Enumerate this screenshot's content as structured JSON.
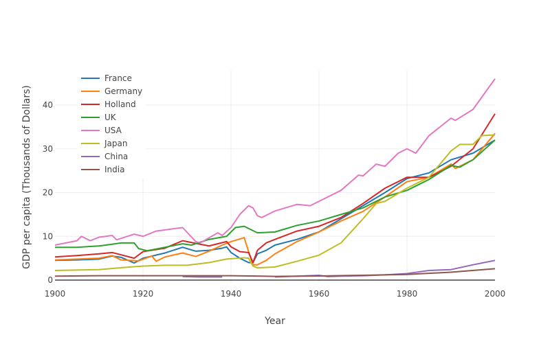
{
  "chart_data": {
    "type": "line",
    "title": "",
    "xlabel": "Year",
    "ylabel": "GDP per capita (Thousands of Dollars)",
    "xlim": [
      1900,
      2000
    ],
    "ylim": [
      -0.6,
      48
    ],
    "xticks": [
      "1900",
      "1920",
      "1940",
      "1960",
      "1980",
      "2000"
    ],
    "yticks": [
      "0",
      "10",
      "20",
      "30",
      "40"
    ],
    "grid": true,
    "legend_position": "top-left",
    "series": [
      {
        "name": "France",
        "color": "#1f77b4",
        "x": [
          1900,
          1905,
          1910,
          1913,
          1915,
          1918,
          1920,
          1925,
          1929,
          1932,
          1935,
          1938,
          1939,
          1940,
          1942,
          1944,
          1945,
          1946,
          1948,
          1950,
          1955,
          1960,
          1965,
          1970,
          1975,
          1980,
          1985,
          1990,
          1995,
          2000
        ],
        "y": [
          4.5,
          4.6,
          4.8,
          5.5,
          5.2,
          3.9,
          5.0,
          6.2,
          7.5,
          6.6,
          6.8,
          7.3,
          7.6,
          6.3,
          5.0,
          4.0,
          4.0,
          6.0,
          6.8,
          8.0,
          9.3,
          11.0,
          14.0,
          17.0,
          20.0,
          23.2,
          24.5,
          27.5,
          29.0,
          32.0
        ]
      },
      {
        "name": "Germany",
        "color": "#ff7f0e",
        "x": [
          1900,
          1905,
          1910,
          1913,
          1915,
          1919,
          1922,
          1923,
          1925,
          1929,
          1932,
          1935,
          1938,
          1940,
          1943,
          1944,
          1945,
          1946,
          1948,
          1950,
          1955,
          1960,
          1965,
          1970,
          1975,
          1980,
          1985,
          1990,
          1991,
          1995,
          2000
        ],
        "y": [
          4.6,
          4.8,
          5.0,
          5.6,
          4.6,
          4.4,
          5.5,
          4.3,
          5.3,
          6.2,
          5.4,
          6.6,
          8.0,
          8.8,
          9.7,
          6.5,
          3.5,
          3.5,
          4.5,
          6.0,
          8.8,
          11.0,
          13.5,
          15.7,
          19.0,
          22.5,
          23.5,
          26.5,
          25.5,
          27.5,
          33.5
        ]
      },
      {
        "name": "Holland",
        "color": "#d62728",
        "x": [
          1900,
          1905,
          1910,
          1913,
          1918,
          1920,
          1925,
          1929,
          1933,
          1935,
          1939,
          1940,
          1942,
          1944,
          1945,
          1946,
          1948,
          1950,
          1955,
          1960,
          1965,
          1970,
          1975,
          1980,
          1985,
          1990,
          1995,
          2000
        ],
        "y": [
          5.3,
          5.6,
          6.0,
          6.3,
          5.0,
          6.5,
          7.3,
          9.0,
          8.2,
          7.8,
          8.8,
          7.6,
          6.5,
          6.3,
          4.0,
          6.8,
          8.5,
          9.3,
          11.2,
          12.3,
          14.3,
          17.5,
          21.0,
          23.5,
          23.5,
          26.0,
          30.0,
          38.0
        ]
      },
      {
        "name": "UK",
        "color": "#2ca02c",
        "x": [
          1900,
          1905,
          1910,
          1913,
          1915,
          1918,
          1919,
          1921,
          1925,
          1929,
          1931,
          1935,
          1939,
          1941,
          1943,
          1946,
          1950,
          1955,
          1960,
          1965,
          1970,
          1975,
          1980,
          1985,
          1990,
          1992,
          1995,
          2000
        ],
        "y": [
          7.5,
          7.5,
          7.8,
          8.2,
          8.5,
          8.5,
          7.2,
          6.7,
          7.5,
          8.3,
          8.0,
          9.3,
          10.0,
          12.0,
          12.3,
          10.8,
          11.0,
          12.5,
          13.5,
          15.0,
          16.5,
          19.0,
          20.5,
          23.0,
          26.2,
          25.8,
          27.5,
          32.0
        ]
      },
      {
        "name": "USA",
        "color": "#e377c2",
        "x": [
          1900,
          1905,
          1906,
          1908,
          1910,
          1913,
          1914,
          1918,
          1920,
          1923,
          1929,
          1932,
          1933,
          1937,
          1938,
          1940,
          1942,
          1944,
          1945,
          1946,
          1947,
          1950,
          1955,
          1958,
          1960,
          1965,
          1969,
          1970,
          1973,
          1975,
          1978,
          1980,
          1982,
          1985,
          1990,
          1991,
          1995,
          2000
        ],
        "y": [
          8.0,
          9.0,
          10.0,
          9.0,
          9.8,
          10.2,
          9.2,
          10.5,
          10.0,
          11.2,
          12.0,
          8.8,
          8.5,
          10.8,
          10.2,
          12.0,
          15.0,
          17.0,
          16.5,
          14.7,
          14.3,
          15.8,
          17.3,
          17.0,
          18.0,
          20.5,
          24.0,
          23.8,
          26.5,
          26.0,
          29.0,
          30.0,
          29.0,
          33.0,
          37.0,
          36.5,
          39.0,
          46.0
        ]
      },
      {
        "name": "Japan",
        "color": "#bcbd22",
        "x": [
          1900,
          1910,
          1917,
          1920,
          1925,
          1930,
          1935,
          1939,
          1943,
          1944,
          1945,
          1946,
          1950,
          1955,
          1960,
          1965,
          1970,
          1973,
          1975,
          1980,
          1985,
          1990,
          1992,
          1995,
          1997,
          2000
        ],
        "y": [
          2.2,
          2.4,
          3.0,
          3.2,
          3.4,
          3.4,
          4.0,
          4.8,
          5.1,
          5.0,
          3.2,
          2.8,
          3.0,
          4.3,
          5.7,
          8.5,
          14.0,
          17.5,
          18.0,
          21.0,
          23.5,
          29.5,
          31.0,
          31.0,
          33.0,
          33.2
        ]
      },
      {
        "name": "China",
        "color": "#9467bd",
        "x": [
          1929,
          1933,
          1938,
          1950,
          1955,
          1960,
          1962,
          1965,
          1970,
          1975,
          1980,
          1985,
          1990,
          1995,
          2000
        ],
        "y": [
          0.8,
          0.7,
          0.7,
          0.7,
          0.9,
          1.1,
          0.8,
          0.9,
          1.0,
          1.2,
          1.5,
          2.2,
          2.4,
          3.5,
          4.5
        ],
        "gaps_after": [
          1938
        ]
      },
      {
        "name": "India",
        "color": "#8c564b",
        "x": [
          1900,
          1910,
          1920,
          1930,
          1940,
          1950,
          1960,
          1970,
          1980,
          1990,
          2000
        ],
        "y": [
          0.9,
          1.0,
          1.0,
          1.0,
          1.0,
          0.85,
          0.95,
          1.1,
          1.3,
          1.8,
          2.6
        ]
      }
    ]
  }
}
